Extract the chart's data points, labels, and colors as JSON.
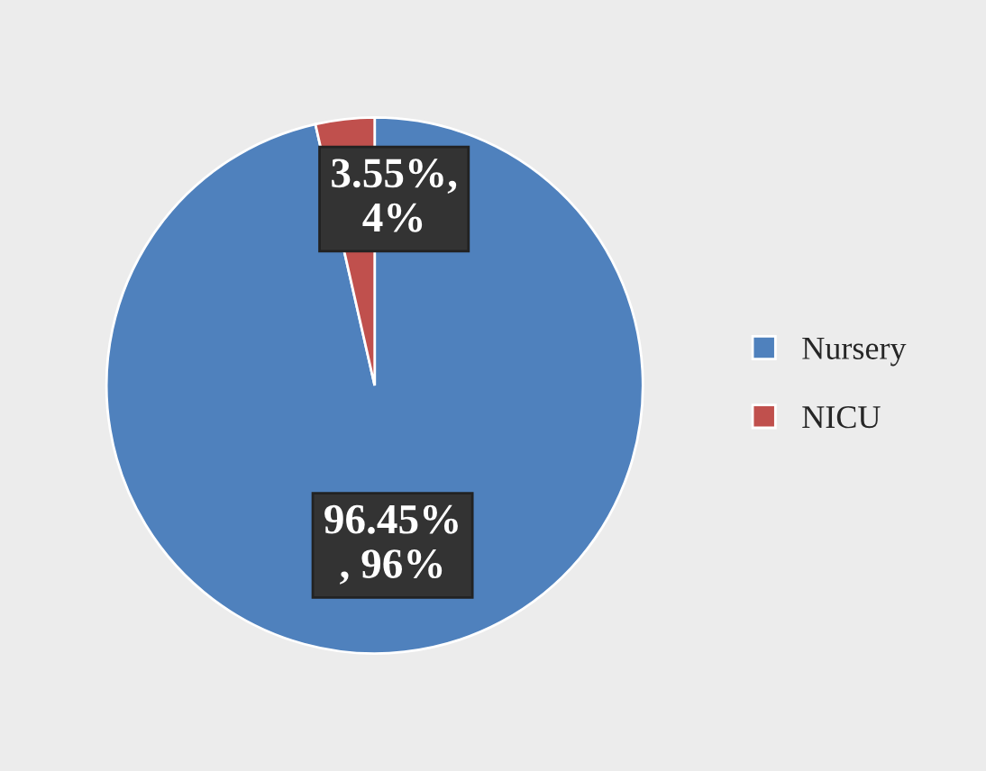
{
  "chart_data": {
    "type": "pie",
    "categories": [
      "Nursery",
      "NICU"
    ],
    "values": [
      96.45,
      3.55
    ],
    "colors": [
      "#4f81bd",
      "#c0504d"
    ],
    "value_labels": [
      "96.45%\n, 96%",
      "3.55%,\n4%"
    ],
    "legend": "right"
  }
}
